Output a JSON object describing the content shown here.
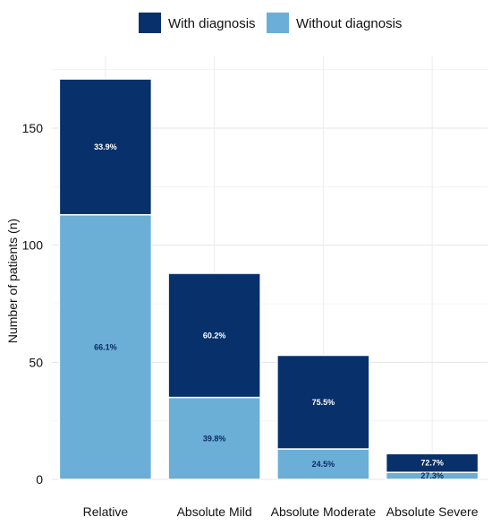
{
  "chart_data": {
    "type": "bar",
    "stacked": true,
    "categories": [
      "Relative",
      "Absolute Mild",
      "Absolute Moderate",
      "Absolute Severe"
    ],
    "series": [
      {
        "name": "Without diagnosis",
        "values": [
          113,
          35,
          13,
          3
        ],
        "labels": [
          "66.1%",
          "39.8%",
          "24.5%",
          "27.3%"
        ],
        "color": "#6baed6"
      },
      {
        "name": "With diagnosis",
        "values": [
          58,
          53,
          40,
          8
        ],
        "labels": [
          "33.9%",
          "60.2%",
          "75.5%",
          "72.7%"
        ],
        "color": "#08306b"
      }
    ],
    "legend_order": [
      "With diagnosis",
      "Without diagnosis"
    ],
    "legend_position": "top",
    "ylabel": "Number of patients (n)",
    "xlabel": "",
    "title": "",
    "yticks": [
      0,
      50,
      100,
      150
    ],
    "ylim": [
      0,
      177
    ],
    "grid": true
  }
}
